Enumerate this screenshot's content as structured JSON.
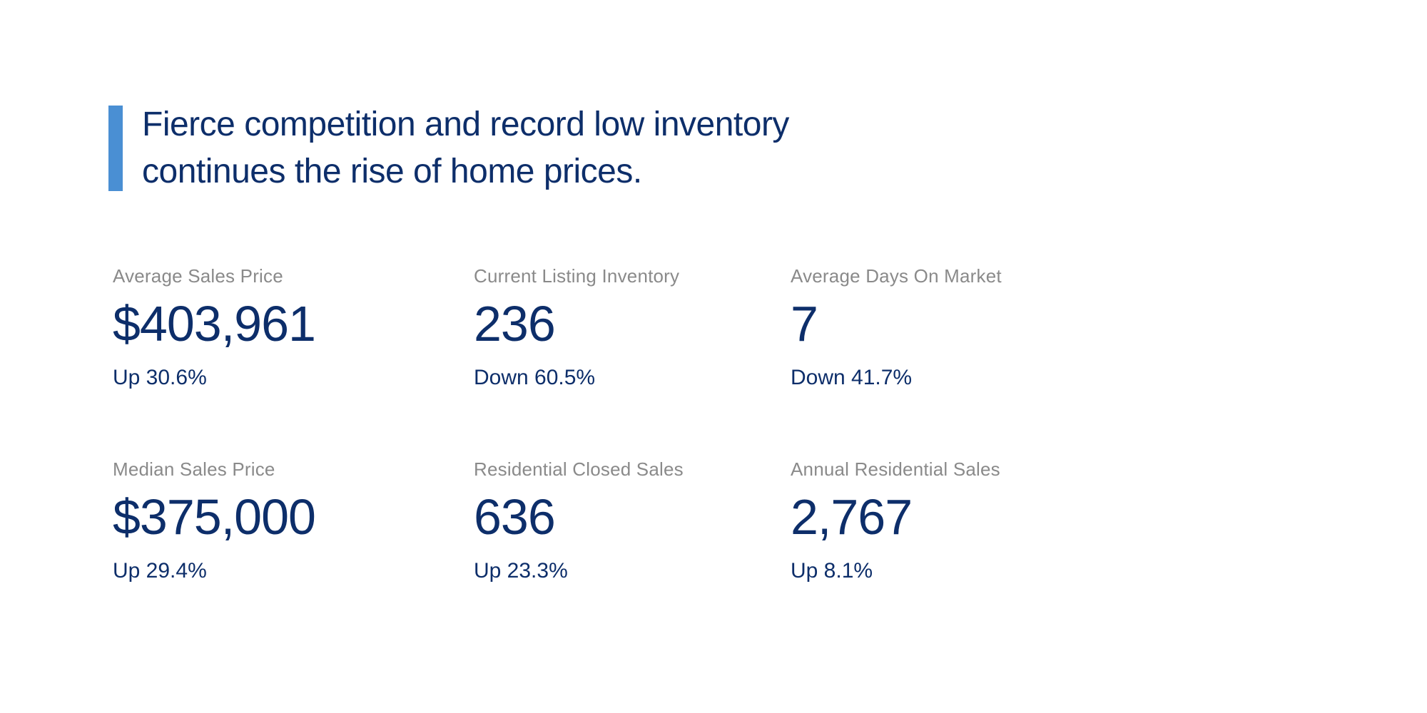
{
  "page": {
    "background_color": "#ffffff",
    "accent_color": "#4a8fd3",
    "primary_text_color": "#0d2e6a",
    "label_color": "#8a8a8a"
  },
  "headline": {
    "line1": "Fierce competition and record low inventory",
    "line2": "continues the rise of home prices."
  },
  "stats": [
    {
      "label": "Average Sales Price",
      "value": "$403,961",
      "change": "Up 30.6%"
    },
    {
      "label": "Current Listing Inventory",
      "value": "236",
      "change": "Down 60.5%"
    },
    {
      "label": "Average Days On Market",
      "value": "7",
      "change": "Down 41.7%"
    },
    {
      "label": "Median Sales Price",
      "value": "$375,000",
      "change": "Up 29.4%"
    },
    {
      "label": "Residential Closed Sales",
      "value": "636",
      "change": "Up 23.3%"
    },
    {
      "label": "Annual Residential Sales",
      "value": "2,767",
      "change": "Up 8.1%"
    }
  ]
}
